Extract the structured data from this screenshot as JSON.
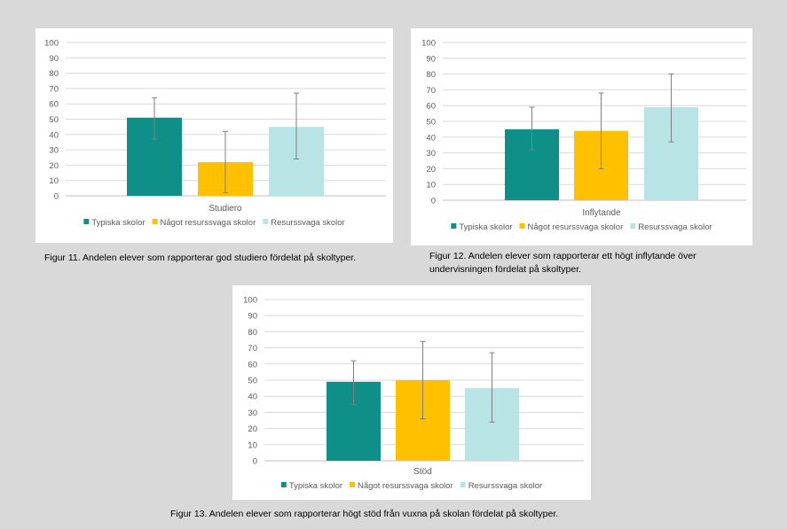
{
  "colors": {
    "typiska": "#0e9089",
    "nagot": "#ffc000",
    "resurssvaga": "#b9e4e6",
    "grid": "#d9d9d9",
    "axis": "#bfbfbf",
    "errorbar": "#7f7f7f",
    "text": "#595959"
  },
  "captions": {
    "fig11": "Figur 11. Andelen elever som rapporterar god studiero fördelat på skoltyper.",
    "fig12": "Figur 12. Andelen elever som rapporterar ett högt inflytande över undervisningen fördelat på skoltyper.",
    "fig13": "Figur 13. Andelen elever som rapporterar högt stöd från vuxna på skolan fördelat på skoltyper."
  },
  "chart_data": [
    {
      "id": "fig11",
      "type": "bar",
      "categories": [
        "Studiero"
      ],
      "ylim": [
        0,
        100
      ],
      "yticks": [
        0,
        10,
        20,
        30,
        40,
        50,
        60,
        70,
        80,
        90,
        100
      ],
      "legend_position": "bottom",
      "series": [
        {
          "name": "Typiska skolor",
          "values": [
            51
          ],
          "error_low": [
            37
          ],
          "error_high": [
            64
          ],
          "color": "#0e9089"
        },
        {
          "name": "Något resurssvaga skolor",
          "values": [
            22
          ],
          "error_low": [
            2
          ],
          "error_high": [
            42
          ],
          "color": "#ffc000"
        },
        {
          "name": "Resurssvaga skolor",
          "values": [
            45
          ],
          "error_low": [
            24
          ],
          "error_high": [
            67
          ],
          "color": "#b9e4e6"
        }
      ]
    },
    {
      "id": "fig12",
      "type": "bar",
      "categories": [
        "Inflytande"
      ],
      "ylim": [
        0,
        100
      ],
      "yticks": [
        0,
        10,
        20,
        30,
        40,
        50,
        60,
        70,
        80,
        90,
        100
      ],
      "legend_position": "bottom",
      "series": [
        {
          "name": "Typiska skolor",
          "values": [
            45
          ],
          "error_low": [
            32
          ],
          "error_high": [
            59
          ],
          "color": "#0e9089"
        },
        {
          "name": "Något resurssvaga skolor",
          "values": [
            44
          ],
          "error_low": [
            20
          ],
          "error_high": [
            68
          ],
          "color": "#ffc000"
        },
        {
          "name": "Resurssvaga skolor",
          "values": [
            59
          ],
          "error_low": [
            37
          ],
          "error_high": [
            80
          ],
          "color": "#b9e4e6"
        }
      ]
    },
    {
      "id": "fig13",
      "type": "bar",
      "categories": [
        "Stöd"
      ],
      "ylim": [
        0,
        100
      ],
      "yticks": [
        0,
        10,
        20,
        30,
        40,
        50,
        60,
        70,
        80,
        90,
        100
      ],
      "legend_position": "bottom",
      "series": [
        {
          "name": "Typiska skolor",
          "values": [
            49
          ],
          "error_low": [
            35
          ],
          "error_high": [
            62
          ],
          "color": "#0e9089"
        },
        {
          "name": "Något resurssvaga skolor",
          "values": [
            50
          ],
          "error_low": [
            26
          ],
          "error_high": [
            74
          ],
          "color": "#ffc000"
        },
        {
          "name": "Resurssvaga skolor",
          "values": [
            45
          ],
          "error_low": [
            24
          ],
          "error_high": [
            67
          ],
          "color": "#b9e4e6"
        }
      ]
    }
  ]
}
